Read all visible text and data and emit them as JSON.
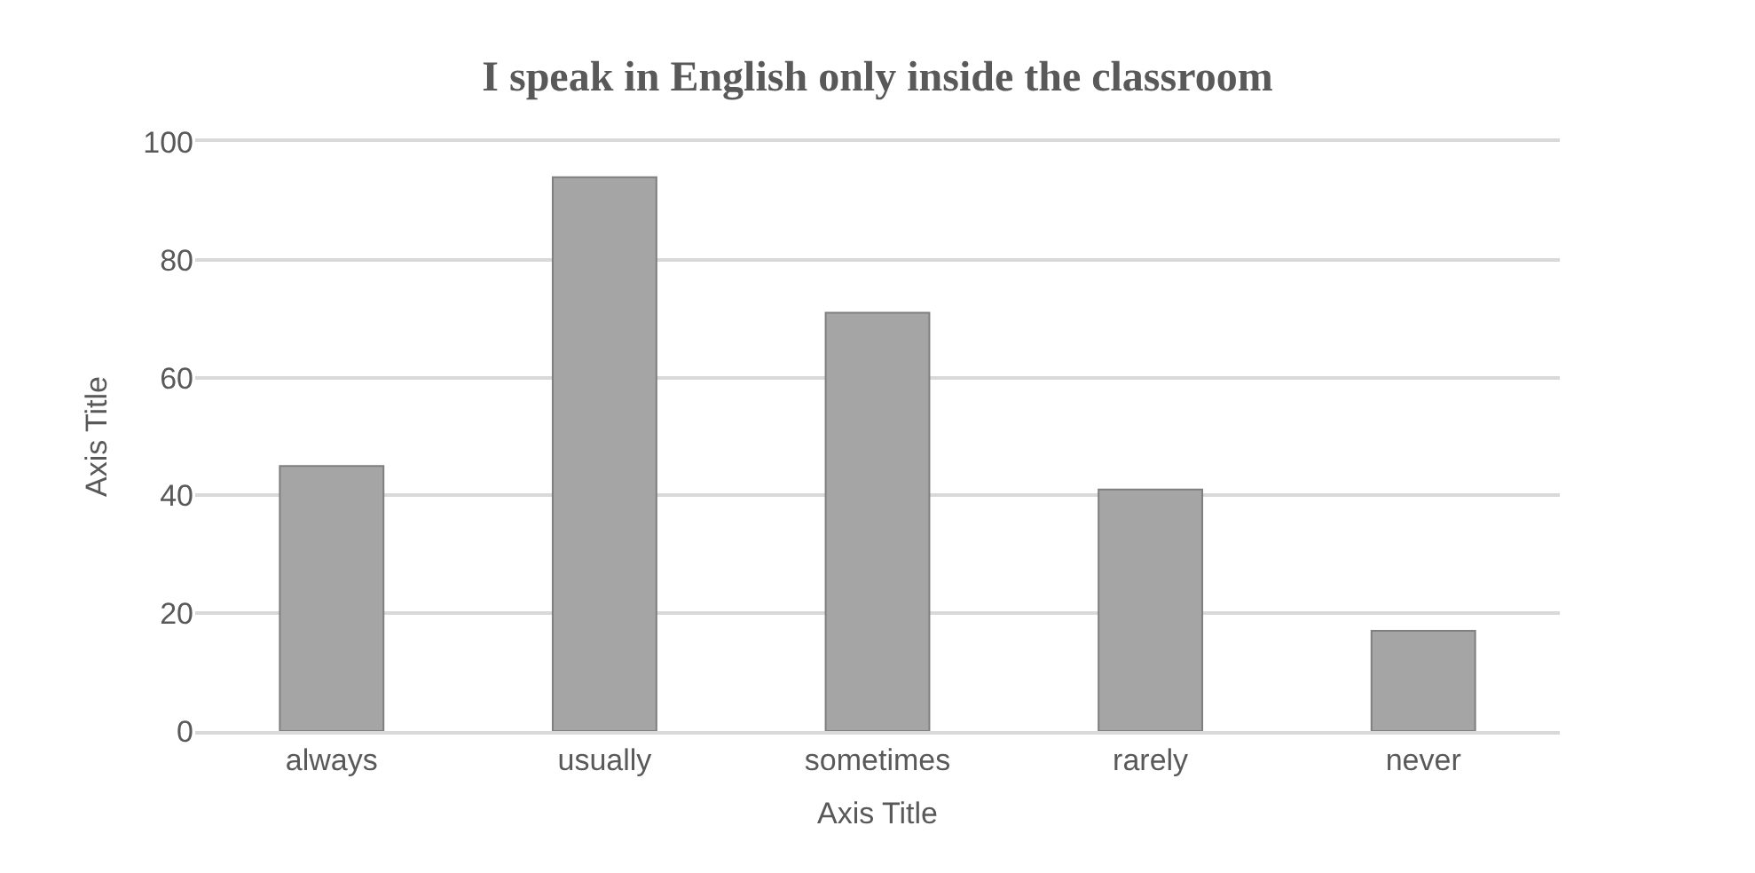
{
  "chart_data": {
    "type": "bar",
    "title": "I speak in English only inside the classroom",
    "xlabel": "Axis Title",
    "ylabel": "Axis Title",
    "categories": [
      "always",
      "usually",
      "sometimes",
      "rarely",
      "never"
    ],
    "values": [
      45,
      94,
      71,
      41,
      17
    ],
    "color": "#a5a5a5",
    "ylim": [
      0,
      100
    ],
    "yticks": [
      0,
      20,
      40,
      60,
      80,
      100
    ],
    "grid": "y"
  }
}
